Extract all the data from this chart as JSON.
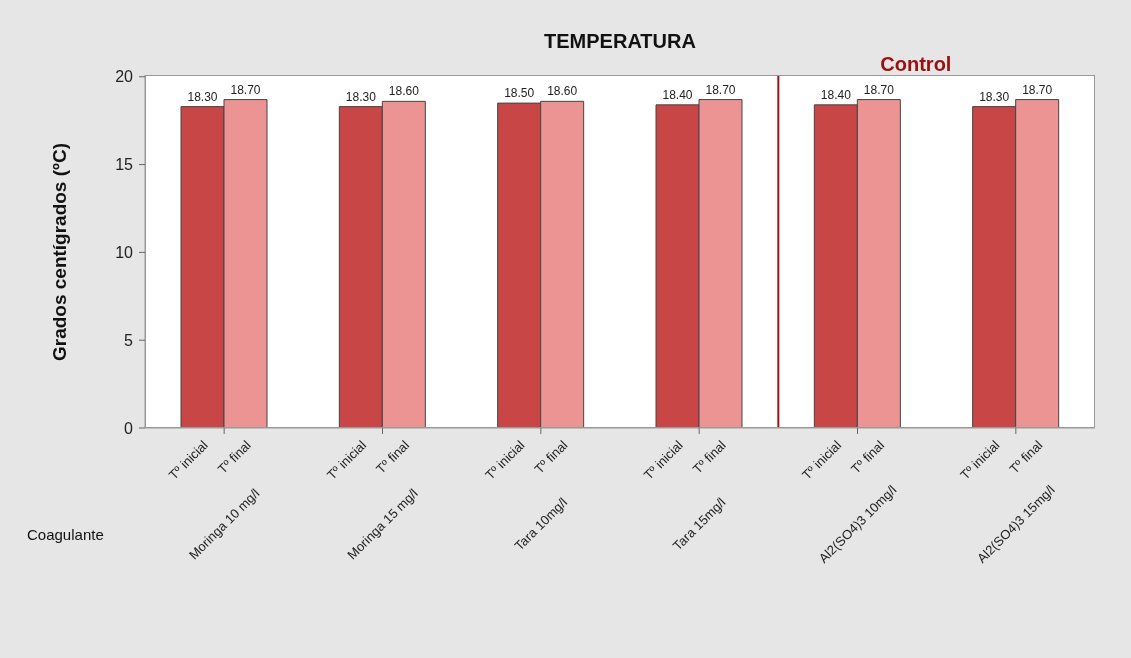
{
  "chart_data": {
    "type": "bar",
    "title": "TEMPERATURA",
    "ylabel": "Grados centígrados (ºC)",
    "xlabel": "Coagulante",
    "categories": [
      "Moringa 10 mg/l",
      "Moringa 15 mg/l",
      "Tara 10mg/l",
      "Tara 15mg/l",
      "Al2(SO4)3 10mg/l",
      "Al2(SO4)3 15mg/l"
    ],
    "series": [
      {
        "name": "Tº inicial",
        "color": "#c84646",
        "values": [
          18.3,
          18.3,
          18.5,
          18.4,
          18.4,
          18.3
        ],
        "value_labels": [
          "18.30",
          "18.30",
          "18.50",
          "18.40",
          "18.40",
          "18.30"
        ]
      },
      {
        "name": "Tº final",
        "color": "#ec9494",
        "values": [
          18.7,
          18.6,
          18.6,
          18.7,
          18.7,
          18.7
        ],
        "value_labels": [
          "18.70",
          "18.60",
          "18.60",
          "18.70",
          "18.70",
          "18.70"
        ]
      }
    ],
    "ylim": [
      0,
      20.1
    ],
    "yticks": [
      0,
      5,
      10,
      15,
      20
    ],
    "ref_lines": [
      {
        "axis": "x",
        "value": "Al2(SO4)3 10mg/l",
        "label": "Control",
        "color": "#9b1010"
      }
    ]
  }
}
